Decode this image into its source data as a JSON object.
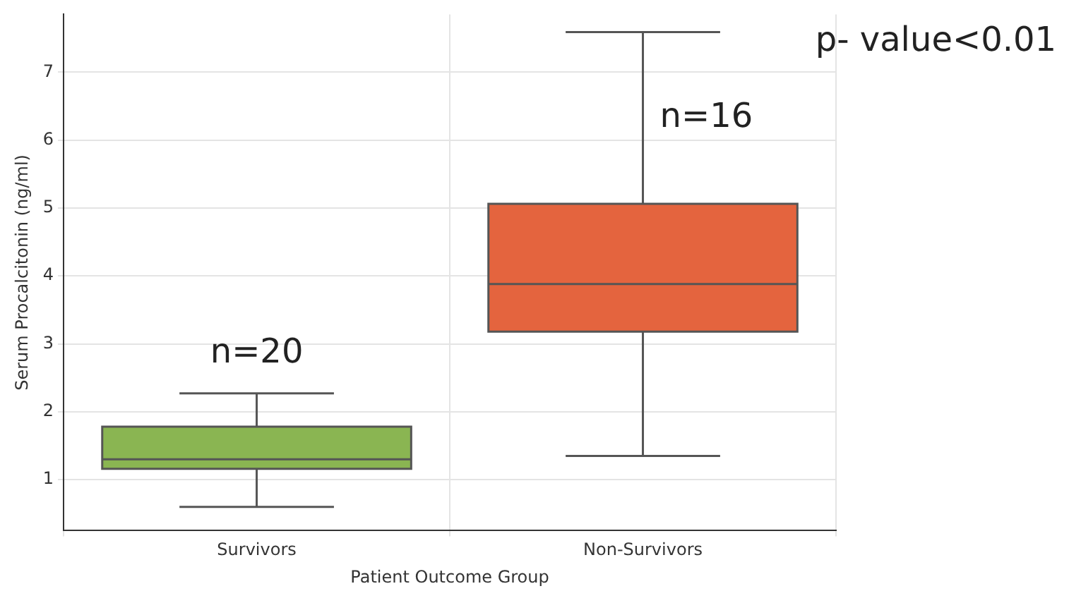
{
  "chart_data": {
    "type": "box",
    "xlabel": "Patient Outcome Group",
    "ylabel": "Serum Procalcitonin (ng/ml)",
    "categories": [
      "Survivors",
      "Non-Survivors"
    ],
    "colors": [
      "#8ab552",
      "#e4643e"
    ],
    "boxes": [
      {
        "low": 0.6,
        "q1": 1.16,
        "median": 1.3,
        "q3": 1.78,
        "high": 2.27
      },
      {
        "low": 1.35,
        "q1": 3.18,
        "median": 3.88,
        "q3": 5.06,
        "high": 7.59
      }
    ],
    "ylim": [
      0.25,
      7.85
    ],
    "yticks": [
      1,
      2,
      3,
      4,
      5,
      6,
      7
    ],
    "grid": true,
    "annotations": [
      "n=20",
      "n=16",
      "p- value<0.01"
    ]
  }
}
